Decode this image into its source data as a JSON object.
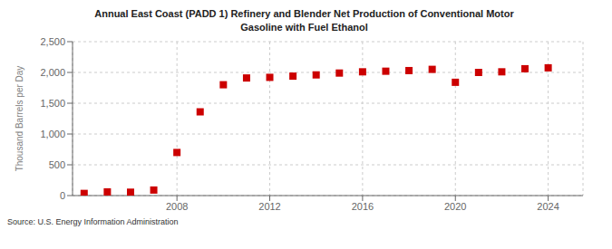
{
  "chart_data": {
    "type": "scatter",
    "title": "Annual East Coast (PADD 1) Refinery and Blender Net Production of Conventional Motor\nGasoline with Fuel Ethanol",
    "ylabel": "Thousand Barrels per Day",
    "source": "Source: U.S. Energy Information Administration",
    "x": [
      2004,
      2005,
      2006,
      2007,
      2008,
      2009,
      2010,
      2011,
      2012,
      2013,
      2014,
      2015,
      2016,
      2017,
      2018,
      2019,
      2020,
      2021,
      2022,
      2023,
      2024
    ],
    "values": [
      35,
      60,
      55,
      90,
      700,
      1360,
      1800,
      1910,
      1920,
      1940,
      1960,
      1990,
      2010,
      2020,
      2030,
      2050,
      1840,
      2000,
      2010,
      2060,
      2075
    ],
    "color": "#cc0000",
    "marker": "square",
    "xlim": [
      2003.5,
      2025.5
    ],
    "xticks": [
      2008,
      2012,
      2016,
      2020,
      2024
    ],
    "ylim": [
      0,
      2500
    ],
    "yticks": [
      0,
      500,
      {
        "value": 1000,
        "label": "1,000"
      },
      {
        "value": 1500,
        "label": "1,500"
      },
      {
        "value": 2000,
        "label": "2,000"
      },
      {
        "value": 2500,
        "label": "2,500"
      }
    ],
    "grid": true
  }
}
